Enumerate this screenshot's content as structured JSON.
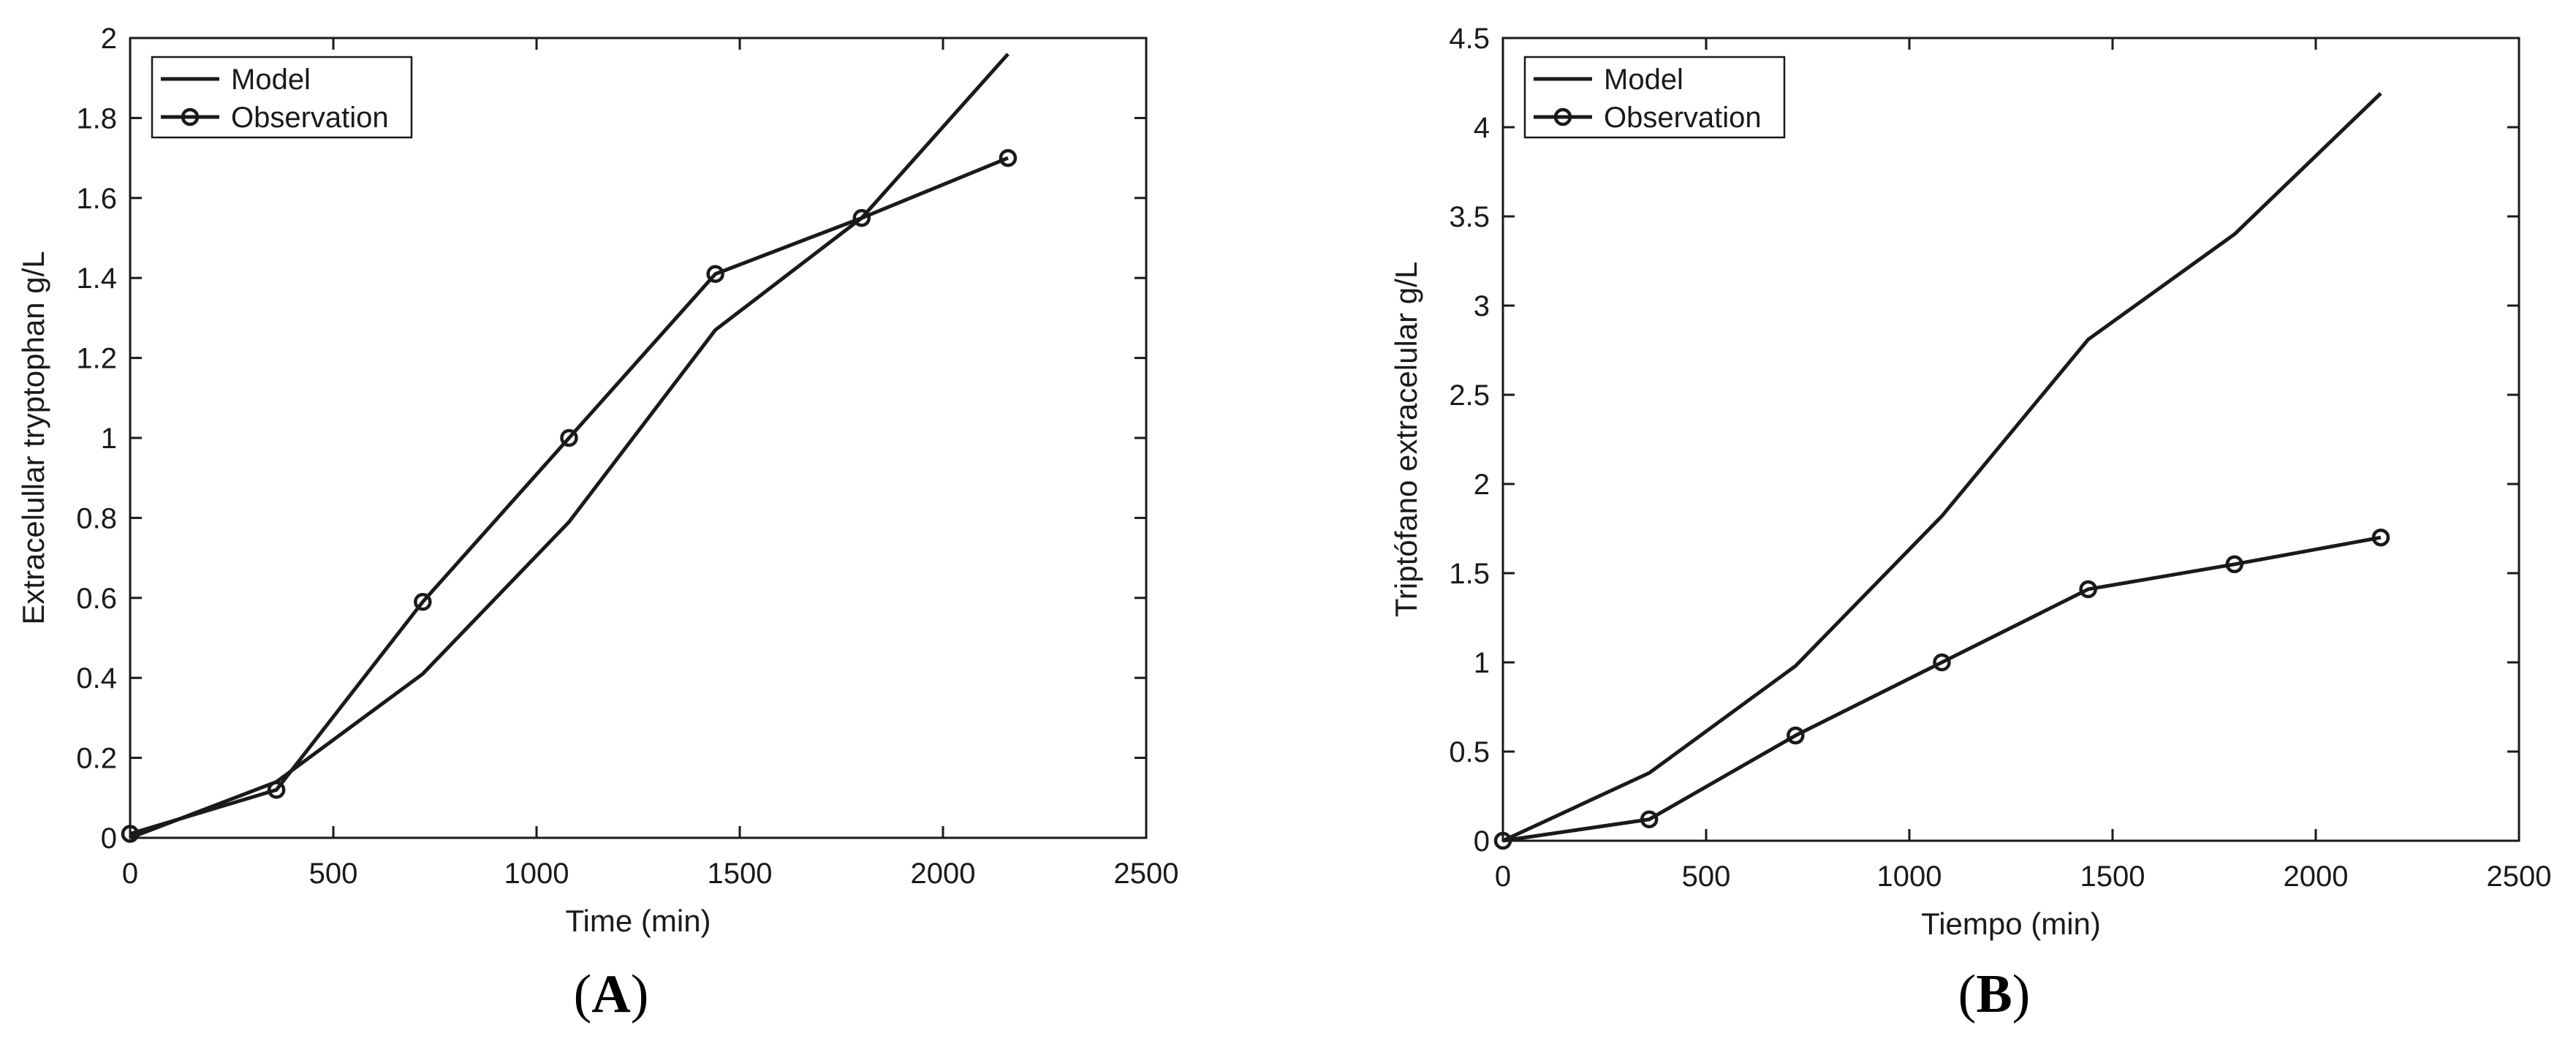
{
  "figure": {
    "panels": [
      {
        "letter": "A",
        "caption_open": "(",
        "caption_close": ")",
        "chart_ref": 0
      },
      {
        "letter": "B",
        "caption_open": "(",
        "caption_close": ")",
        "chart_ref": 1
      }
    ]
  },
  "chart_data": [
    {
      "type": "line",
      "title": "",
      "xlabel": "Time (min)",
      "ylabel": "Extracelullar tryptophan g/L",
      "xlim": [
        0,
        2500
      ],
      "ylim": [
        0,
        2
      ],
      "xticks": [
        0,
        500,
        1000,
        1500,
        2000,
        2500
      ],
      "xtick_labels": [
        "0",
        "500",
        "1000",
        "1500",
        "2000",
        "2500"
      ],
      "yticks": [
        0,
        0.2,
        0.4,
        0.6,
        0.8,
        1,
        1.2,
        1.4,
        1.6,
        1.8,
        2
      ],
      "ytick_labels": [
        "0",
        "0.2",
        "0.4",
        "0.6",
        "0.8",
        "1",
        "1.2",
        "1.4",
        "1.6",
        "1.8",
        "2"
      ],
      "grid": false,
      "legend": "top-left",
      "series": [
        {
          "name": "Model",
          "marker": "none",
          "color": "#1a1a1a",
          "x": [
            0,
            360,
            720,
            1080,
            1440,
            1800,
            2160
          ],
          "y": [
            0.0,
            0.14,
            0.41,
            0.79,
            1.27,
            1.55,
            1.96
          ]
        },
        {
          "name": "Observation",
          "marker": "circle",
          "color": "#1a1a1a",
          "x": [
            0,
            360,
            720,
            1080,
            1440,
            1800,
            2160
          ],
          "y": [
            0.01,
            0.12,
            0.59,
            1.0,
            1.41,
            1.55,
            1.7
          ]
        }
      ]
    },
    {
      "type": "line",
      "title": "",
      "xlabel": "Tiempo (min)",
      "ylabel": "Triptófano extracelular g/L",
      "xlim": [
        0,
        2500
      ],
      "ylim": [
        0,
        4.5
      ],
      "xticks": [
        0,
        500,
        1000,
        1500,
        2000,
        2500
      ],
      "xtick_labels": [
        "0",
        "500",
        "1000",
        "1500",
        "2000",
        "2500"
      ],
      "yticks": [
        0,
        0.5,
        1,
        1.5,
        2,
        2.5,
        3,
        3.5,
        4,
        4.5
      ],
      "ytick_labels": [
        "0",
        "0.5",
        "1",
        "1.5",
        "2",
        "2.5",
        "3",
        "3.5",
        "4",
        "4.5"
      ],
      "grid": false,
      "legend": "top-left",
      "series": [
        {
          "name": "Model",
          "marker": "none",
          "color": "#1a1a1a",
          "x": [
            0,
            360,
            720,
            1080,
            1440,
            1800,
            2160
          ],
          "y": [
            0.0,
            0.38,
            0.98,
            1.82,
            2.81,
            3.4,
            4.19
          ]
        },
        {
          "name": "Observation",
          "marker": "circle",
          "color": "#1a1a1a",
          "x": [
            0,
            360,
            720,
            1080,
            1440,
            1800,
            2160
          ],
          "y": [
            0.0,
            0.12,
            0.59,
            1.0,
            1.41,
            1.55,
            1.7
          ]
        }
      ]
    }
  ]
}
